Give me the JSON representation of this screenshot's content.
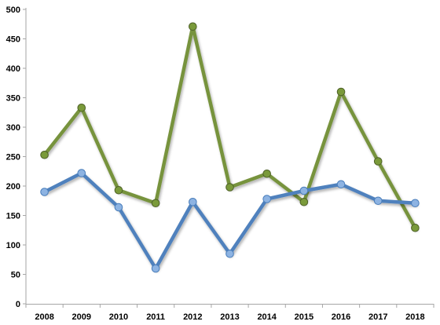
{
  "chart_data": {
    "type": "line",
    "title": "",
    "xlabel": "",
    "ylabel": "",
    "categories": [
      "2008",
      "2009",
      "2010",
      "2011",
      "2012",
      "2013",
      "2014",
      "2015",
      "2016",
      "2017",
      "2018"
    ],
    "ylim": [
      0,
      500
    ],
    "yticks": [
      0,
      50,
      100,
      150,
      200,
      250,
      300,
      350,
      400,
      450,
      500
    ],
    "grid": false,
    "legend": "none",
    "series": [
      {
        "values": [
          253,
          333,
          193,
          171,
          471,
          198,
          221,
          173,
          360,
          242,
          129
        ],
        "color": "#77933c",
        "marker_fill": "#7a9a3a",
        "marker_stroke": "#4f6228"
      },
      {
        "values": [
          190,
          222,
          164,
          60,
          173,
          85,
          178,
          192,
          203,
          175,
          171
        ],
        "color": "#4f81bd",
        "marker_fill": "#8db3e2",
        "marker_stroke": "#4a7ebb"
      }
    ]
  }
}
